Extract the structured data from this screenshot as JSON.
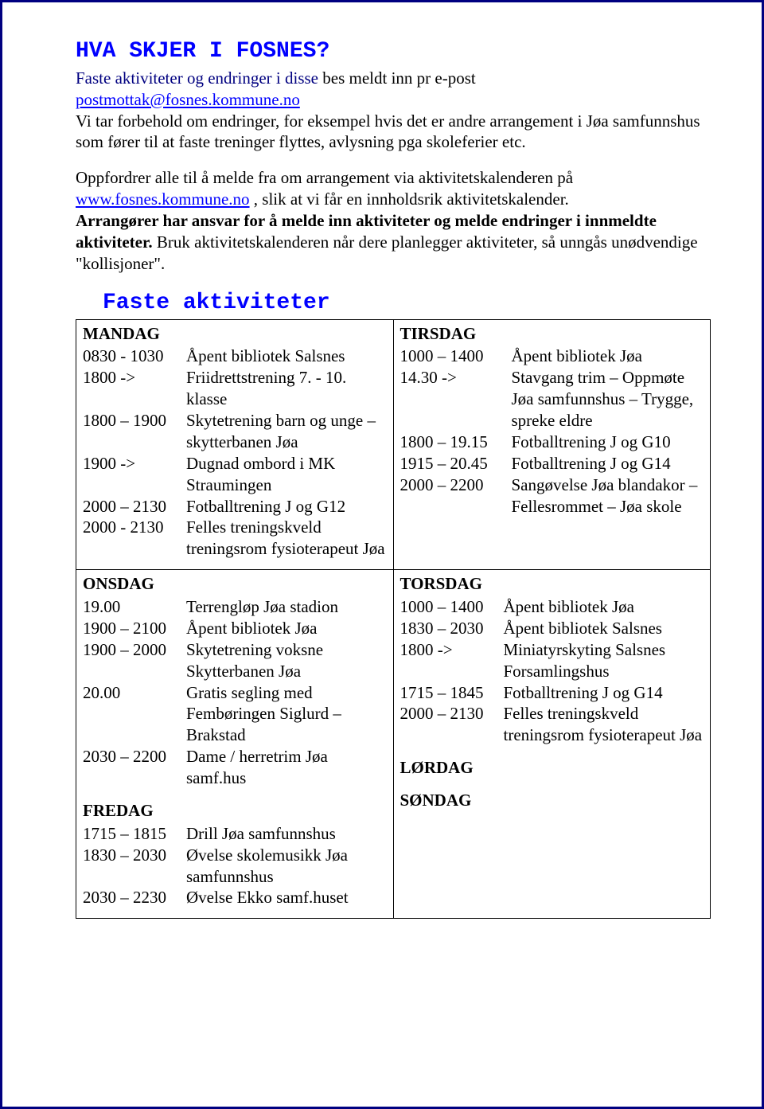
{
  "title": "HVA SKJER I FOSNES?",
  "intro_part1": "Faste aktiviteter og endringer i disse",
  "intro_part2": " bes meldt inn pr e-post ",
  "email": "postmottak@fosnes.kommune.no",
  "intro_after": "Vi tar forbehold om endringer, for eksempel hvis det er andre arrangement i Jøa samfunnshus som fører til at faste treninger flyttes, avlysning pga skoleferier etc.",
  "para2_pre": "Oppfordrer alle til å melde fra om arrangement via aktivitetskalenderen på ",
  "para2_link": "www.fosnes.kommune.no",
  "para2_mid": " , slik at vi får en innholdsrik aktivitetskalender. ",
  "para2_bold": "Arrangører har ansvar for å melde inn aktiviteter og melde endringer i innmeldte aktiviteter.",
  "para2_tail": " Bruk aktivitetskalenderen når dere planlegger aktiviteter, så unngås unødvendige \"kollisjoner\".",
  "faste_title": "Faste aktiviteter",
  "mandag": {
    "head": "MANDAG",
    "r1t": "0830 - 1030",
    "r1d": "Åpent bibliotek Salsnes",
    "r2t": "1800 ->",
    "r2d": "Friidrettstrening 7. - 10. klasse",
    "r3t": "1800 – 1900",
    "r3d": "Skytetrening barn og unge – skytterbanen Jøa",
    "r4t": "1900 ->",
    "r4d": "Dugnad ombord i MK Straumingen",
    "r5t": "2000 – 2130",
    "r5d": "Fotballtrening J og G12",
    "r6t": "2000 - 2130",
    "r6d": "Felles treningskveld treningsrom fysioterapeut Jøa"
  },
  "tirsdag": {
    "head": "TIRSDAG",
    "r1t": "1000 – 1400",
    "r1d": "Åpent bibliotek Jøa",
    "r2t": "14.30 ->",
    "r2d": "Stavgang trim – Oppmøte Jøa samfunnshus – Trygge, spreke eldre",
    "r3t": "1800 – 19.15",
    "r3d": "Fotballtrening J og G10",
    "r4t": "1915 – 20.45",
    "r4d": "Fotballtrening J og G14",
    "r5t": "2000 – 2200",
    "r5d": "Sangøvelse Jøa blandakor – Fellesrommet – Jøa skole"
  },
  "onsdag": {
    "head": "ONSDAG",
    "r1t": "19.00",
    "r1d": "Terrengløp Jøa stadion",
    "r2t": "1900 – 2100",
    "r2d": "Åpent bibliotek Jøa",
    "r3t": "1900 – 2000",
    "r3d": "Skytetrening voksne Skytterbanen Jøa",
    "r4t": "20.00",
    "r4d": "Gratis segling med Fembøringen Siglurd – Brakstad",
    "r5t": "2030 – 2200",
    "r5d": "Dame / herretrim Jøa samf.hus"
  },
  "torsdag": {
    "head": "TORSDAG",
    "r1t": "1000 – 1400",
    "r1d": "Åpent bibliotek Jøa",
    "r2t": "1830 – 2030",
    "r2d": "Åpent bibliotek Salsnes",
    "r3t": "1800 ->",
    "r3d": "Miniatyrskyting Salsnes Forsamlingshus",
    "r4t": "1715 – 1845",
    "r4d": "Fotballtrening J og G14",
    "r5t": "2000 – 2130",
    "r5d": "Felles treningskveld treningsrom fysioterapeut Jøa"
  },
  "fredag": {
    "head": "FREDAG",
    "r1t": "1715 – 1815",
    "r1d": "Drill Jøa samfunnshus",
    "r2t": "1830 – 2030",
    "r2d": "Øvelse skolemusikk Jøa samfunnshus",
    "r3t": "2030 – 2230",
    "r3d": "Øvelse Ekko samf.huset"
  },
  "lordag": {
    "head": "LØRDAG"
  },
  "sondag": {
    "head": "SØNDAG"
  }
}
